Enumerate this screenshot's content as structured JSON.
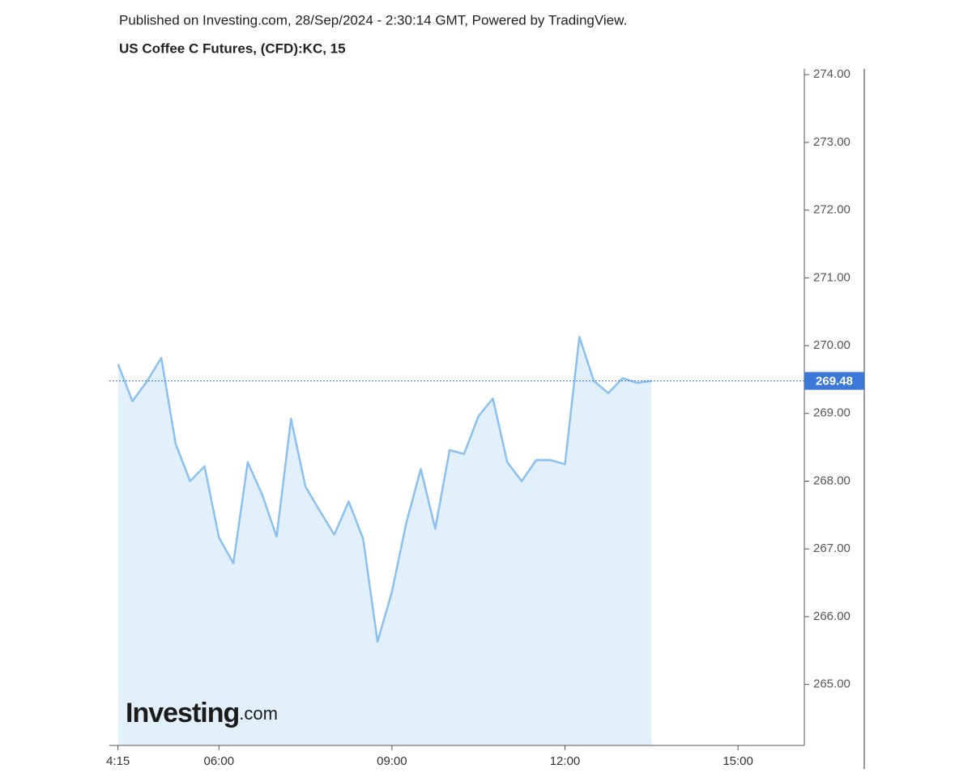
{
  "chart_data": {
    "type": "area",
    "header": "Published on Investing.com, 28/Sep/2024 - 2:30:14 GMT, Powered by TradingView.",
    "title": "US Coffee C Futures, (CFD):KC, 15",
    "watermark": [
      "Investing",
      ".com"
    ],
    "x": [
      "04:15",
      "04:30",
      "04:45",
      "05:00",
      "05:15",
      "05:30",
      "05:45",
      "06:00",
      "06:15",
      "06:30",
      "06:45",
      "07:00",
      "07:15",
      "07:30",
      "07:45",
      "08:00",
      "08:15",
      "08:30",
      "08:45",
      "09:00",
      "09:15",
      "09:30",
      "09:45",
      "10:00",
      "10:15",
      "10:30",
      "10:45",
      "11:00",
      "11:15",
      "11:30",
      "11:45",
      "12:00",
      "12:15",
      "12:30",
      "12:45",
      "13:00",
      "13:15",
      "13:30"
    ],
    "series": [
      {
        "color": "#8cc0ef",
        "fill": "#e1f0fa",
        "values": [
          269.73,
          269.18,
          269.47,
          269.82,
          268.55,
          268.0,
          268.22,
          267.17,
          266.79,
          268.28,
          267.8,
          267.18,
          268.92,
          267.92,
          267.56,
          267.21,
          267.7,
          267.15,
          265.63,
          266.37,
          267.39,
          268.18,
          267.3,
          268.46,
          268.4,
          268.96,
          269.22,
          268.28,
          268.0,
          268.31,
          268.31,
          268.25,
          270.13,
          269.48,
          269.3,
          269.52,
          269.45,
          269.48
        ]
      }
    ],
    "last_value": 269.48,
    "last_color": "#3c78d8",
    "xlim": [
      "04:06",
      "16:09"
    ],
    "xticks": [
      {
        "value": "04:15",
        "label": "4:15"
      },
      "06:00",
      "09:00",
      "12:00",
      "15:00"
    ],
    "ylim": [
      264.1,
      274.05
    ],
    "yticks": [
      {
        "value": 265,
        "label": "265.00"
      },
      {
        "value": 266,
        "label": "266.00"
      },
      {
        "value": 267,
        "label": "267.00"
      },
      {
        "value": 268,
        "label": "268.00"
      },
      {
        "value": 269,
        "label": "269.00"
      },
      {
        "value": 270,
        "label": "270.00"
      },
      {
        "value": 271,
        "label": "271.00"
      },
      {
        "value": 272,
        "label": "272.00"
      },
      {
        "value": 273,
        "label": "273.00"
      },
      {
        "value": 274,
        "label": "274.00"
      }
    ]
  }
}
